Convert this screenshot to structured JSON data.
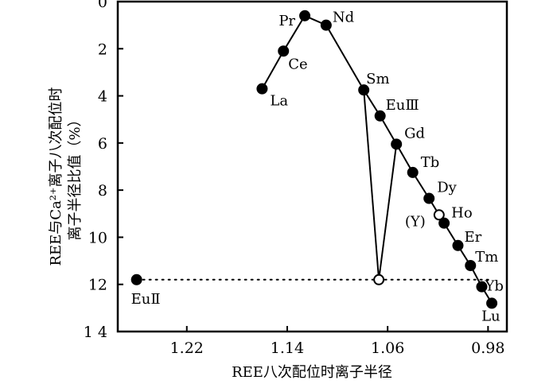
{
  "chart_data": {
    "type": "scatter",
    "xlabel": "REE八次配位时离子半径",
    "ylabel": "REE与Ca²⁺离子八次配位时离子半径比值（%）",
    "ylabel_lines": [
      "REE与Ca²⁺离子八次配位时",
      "离子半径比值（%）"
    ],
    "xlim": [
      1.275,
      0.965
    ],
    "ylim": [
      0,
      14
    ],
    "x_reversed": true,
    "y_reversed": true,
    "x_ticks": [
      1.22,
      1.14,
      1.06,
      0.98
    ],
    "x_tick_labels": [
      "1.22",
      "1.14",
      "1.06",
      "0.98"
    ],
    "y_ticks": [
      0,
      2,
      4,
      6,
      8,
      10,
      12,
      14
    ],
    "y_tick_labels": [
      "0",
      "2",
      "4",
      "6",
      "8",
      "10",
      "12",
      "1 4"
    ],
    "grid": false,
    "points": [
      {
        "label": "La",
        "x": 1.16,
        "y": 3.7,
        "filled": true
      },
      {
        "label": "Ce",
        "x": 1.143,
        "y": 2.1,
        "filled": true
      },
      {
        "label": "Pr",
        "x": 1.126,
        "y": 0.6,
        "filled": true
      },
      {
        "label": "Nd",
        "x": 1.109,
        "y": 1.0,
        "filled": true
      },
      {
        "label": "Sm",
        "x": 1.079,
        "y": 3.75,
        "filled": true
      },
      {
        "label": "EuⅢ",
        "x": 1.066,
        "y": 4.85,
        "filled": true
      },
      {
        "label": "Gd",
        "x": 1.053,
        "y": 6.05,
        "filled": true
      },
      {
        "label": "Tb",
        "x": 1.04,
        "y": 7.25,
        "filled": true
      },
      {
        "label": "Dy",
        "x": 1.027,
        "y": 8.35,
        "filled": true
      },
      {
        "label": "Ho",
        "x": 1.015,
        "y": 9.4,
        "filled": true
      },
      {
        "label": "(Y)",
        "x": 1.019,
        "y": 9.05,
        "filled": false
      },
      {
        "label": "Er",
        "x": 1.004,
        "y": 10.35,
        "filled": true
      },
      {
        "label": "Tm",
        "x": 0.994,
        "y": 11.2,
        "filled": true
      },
      {
        "label": "Yb",
        "x": 0.985,
        "y": 12.1,
        "filled": true
      },
      {
        "label": "Lu",
        "x": 0.977,
        "y": 12.8,
        "filled": true
      },
      {
        "label": "EuⅡ",
        "x": 1.26,
        "y": 11.8,
        "filled": true
      },
      {
        "label": "",
        "x": 1.067,
        "y": 11.8,
        "filled": false
      }
    ],
    "main_line": [
      "La",
      "Ce",
      "Pr",
      "Nd",
      "Sm",
      "EuⅢ",
      "Gd",
      "Tb",
      "Dy",
      "Ho",
      "Er",
      "Tm",
      "Yb",
      "Lu"
    ],
    "anomaly_line": [
      [
        1.079,
        3.75
      ],
      [
        1.067,
        11.8
      ],
      [
        1.053,
        6.05
      ]
    ],
    "reference_line": {
      "style": "dotted",
      "y": 11.8,
      "x_from": 1.26,
      "x_to": 0.977
    }
  }
}
